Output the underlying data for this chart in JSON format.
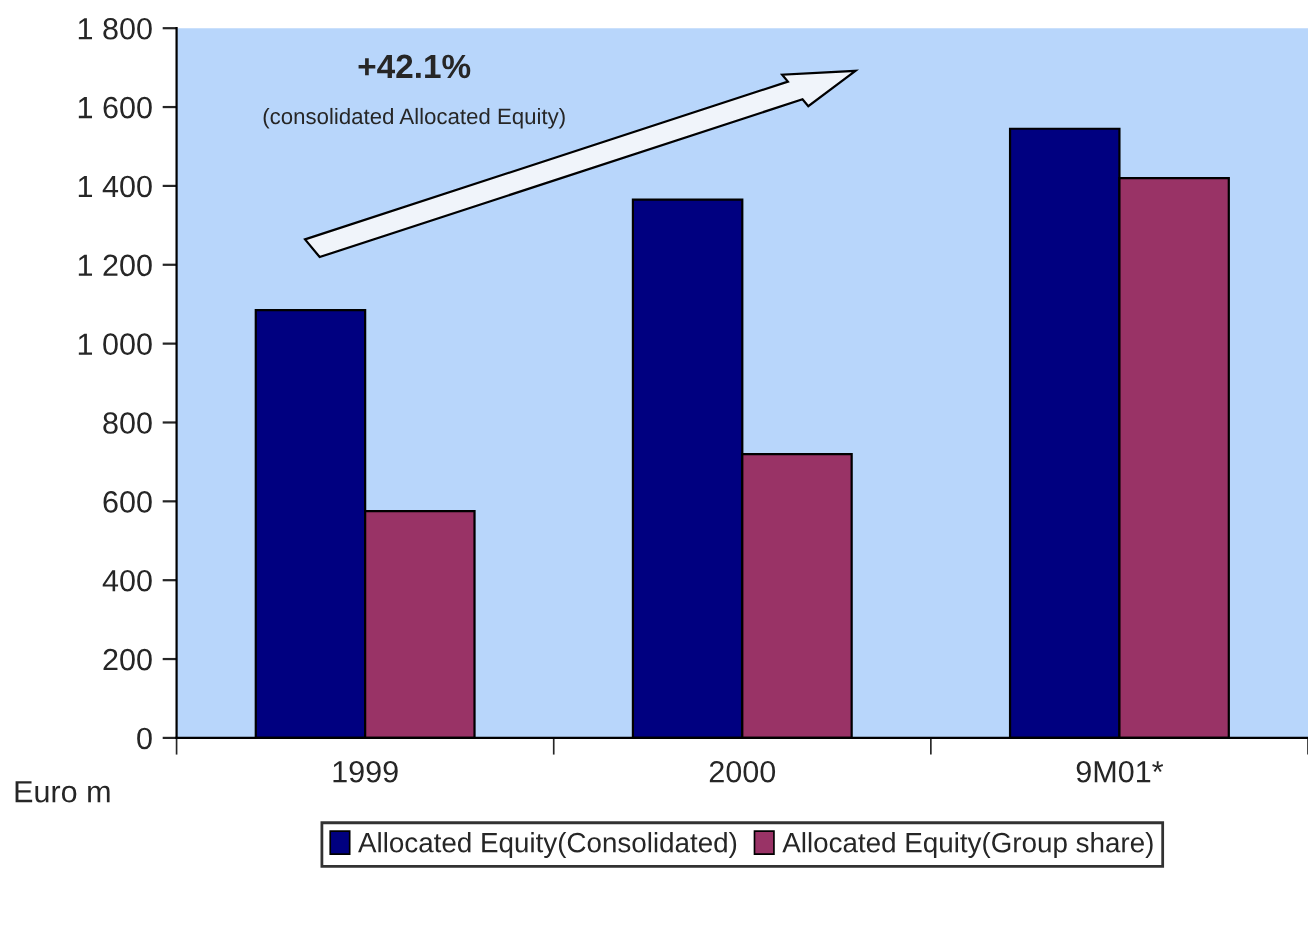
{
  "chart_data": {
    "type": "bar",
    "categories": [
      "1999",
      "2000",
      "9M01*"
    ],
    "series": [
      {
        "name": "Allocated Equity(Consolidated)",
        "color": "#000080",
        "values": [
          1085,
          1365,
          1545
        ]
      },
      {
        "name": "Allocated Equity(Group share)",
        "color": "#993366",
        "values": [
          575,
          720,
          1420
        ]
      }
    ],
    "ylim": [
      0,
      1800
    ],
    "yticks": [
      0,
      200,
      400,
      600,
      800,
      {
        "value": 1000,
        "label": "1 000"
      },
      {
        "value": 1200,
        "label": "1 200"
      },
      {
        "value": 1400,
        "label": "1 400"
      },
      {
        "value": 1600,
        "label": "1 600"
      },
      {
        "value": 1800,
        "label": "1 800"
      }
    ],
    "ylabel": "Euro m",
    "annotations": [
      "+42.1%",
      "(consolidated Allocated Equity)"
    ],
    "grid": false,
    "legend": "bottom"
  }
}
